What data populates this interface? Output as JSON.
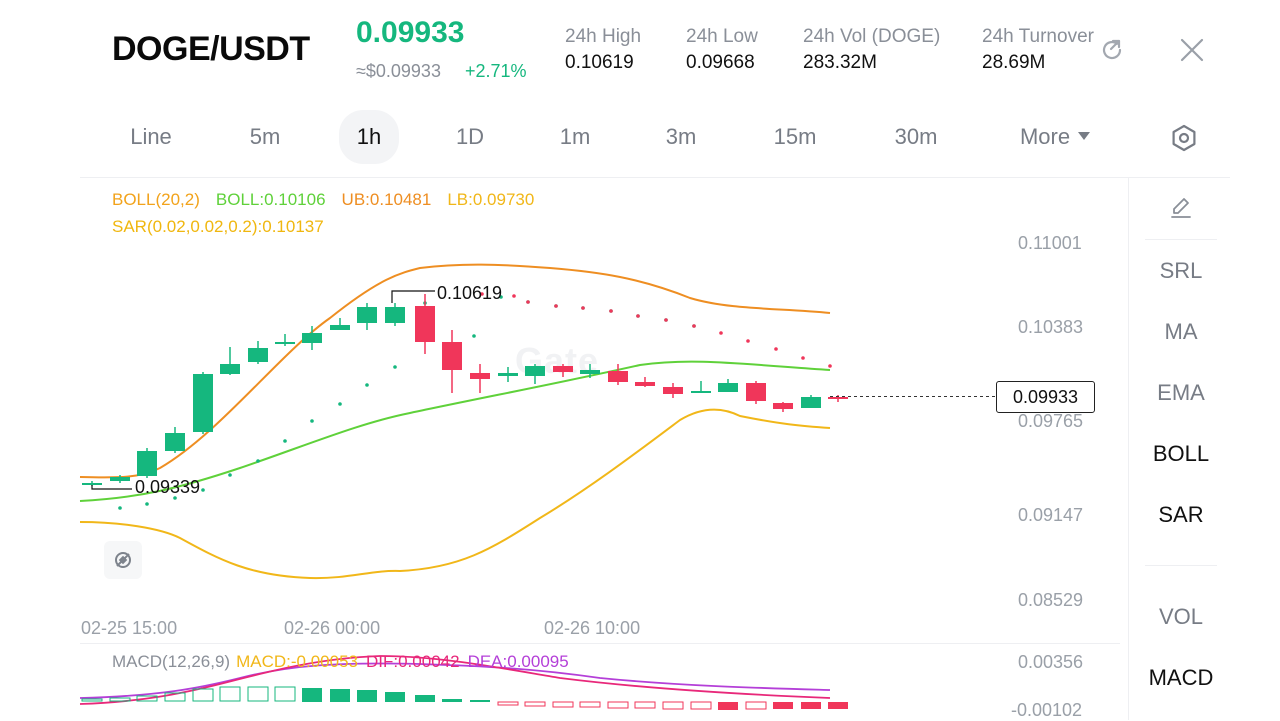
{
  "header": {
    "pair": "DOGE/USDT",
    "price": "0.09933",
    "approx": "≈$0.09933",
    "change": "+2.71%",
    "stats": [
      {
        "label": "24h  High",
        "value": "0.10619"
      },
      {
        "label": "24h  Low",
        "value": "0.09668"
      },
      {
        "label": "24h  Vol (DOGE)",
        "value": "283.32M"
      },
      {
        "label": "24h  Turnover",
        "value": "28.69M"
      }
    ],
    "share_icon": "share-icon",
    "close_icon": "close-icon"
  },
  "tabs": [
    "Line",
    "5m",
    "1h",
    "1D",
    "1m",
    "3m",
    "15m",
    "30m"
  ],
  "active_tab": "1h",
  "more_label": "More",
  "indicators": {
    "boll_name": "BOLL(20,2)",
    "boll_mid": "BOLL:0.10106",
    "ub": "UB:0.10481",
    "lb": "LB:0.09730",
    "sar": "SAR(0.02,0.02,0.2):0.10137"
  },
  "price_axis": [
    "0.11001",
    "0.10383",
    "0.09765",
    "0.09147",
    "0.08529"
  ],
  "time_axis": [
    "02-25 15:00",
    "02-26 00:00",
    "02-26 10:00"
  ],
  "current_price_tag": "0.09933",
  "high_label": "0.10619",
  "low_label": "0.09339",
  "watermark": "Gate",
  "macd": {
    "name": "MACD(12,26,9)",
    "macd": "MACD:-0.00053",
    "dif": "DIF:0.00042",
    "dea": "DEA:0.00095",
    "axis_top": "0.00356",
    "axis_bottom": "-0.00102"
  },
  "sidebar": {
    "draw_icon": "pencil-icon",
    "items": [
      "SRL",
      "MA",
      "EMA",
      "BOLL",
      "SAR",
      "VOL",
      "MACD"
    ],
    "active": [
      "BOLL",
      "SAR",
      "MACD"
    ]
  },
  "colors": {
    "up": "#15b77e",
    "down": "#f0365a",
    "boll_mid": "#5fd13a",
    "boll_band": "#f2a31b",
    "ub": "#ee8e22",
    "lb": "#f1b719",
    "sar": "#f0b70f",
    "macd": "#f1b719",
    "dif": "#e8287a",
    "dea": "#b43fd8"
  }
}
